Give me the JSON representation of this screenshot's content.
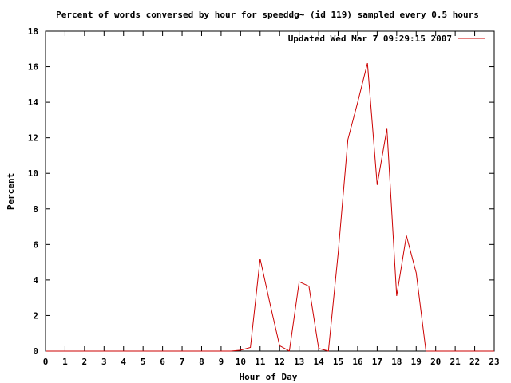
{
  "chart_data": {
    "type": "line",
    "title": "Percent of words conversed by hour for speeddg~ (id 119) sampled every 0.5 hours",
    "xlabel": "Hour of Day",
    "ylabel": "Percent",
    "xlim": [
      0,
      23
    ],
    "ylim": [
      0,
      18
    ],
    "xticks": [
      0,
      1,
      2,
      3,
      4,
      5,
      6,
      7,
      8,
      9,
      10,
      11,
      12,
      13,
      14,
      15,
      16,
      17,
      18,
      19,
      20,
      21,
      22,
      23
    ],
    "yticks": [
      0,
      2,
      4,
      6,
      8,
      10,
      12,
      14,
      16,
      18
    ],
    "grid": false,
    "legend_position": "top-right",
    "series": [
      {
        "name": "Updated Wed Mar  7 09:29:15 2007",
        "color": "#cc0000",
        "x": [
          0,
          0.5,
          1,
          1.5,
          2,
          2.5,
          3,
          3.5,
          4,
          4.5,
          5,
          5.5,
          6,
          6.5,
          7,
          7.5,
          8,
          8.5,
          9,
          9.5,
          10,
          10.5,
          11,
          11.5,
          12,
          12.5,
          13,
          13.5,
          14,
          14.5,
          15,
          15.5,
          16,
          16.5,
          17,
          17.5,
          18,
          18.5,
          19,
          19.5,
          20,
          20.5,
          21,
          21.5,
          22,
          22.5,
          23
        ],
        "y": [
          0,
          0,
          0,
          0,
          0,
          0,
          0,
          0,
          0,
          0,
          0,
          0,
          0,
          0,
          0,
          0,
          0,
          0,
          0,
          0,
          0.05,
          0.2,
          5.2,
          2.7,
          0.3,
          0,
          3.9,
          3.65,
          0.15,
          0,
          5.5,
          11.9,
          14.0,
          16.2,
          9.35,
          12.5,
          3.1,
          6.5,
          4.4,
          0,
          0,
          0,
          0,
          0,
          0,
          0,
          0
        ]
      }
    ]
  }
}
